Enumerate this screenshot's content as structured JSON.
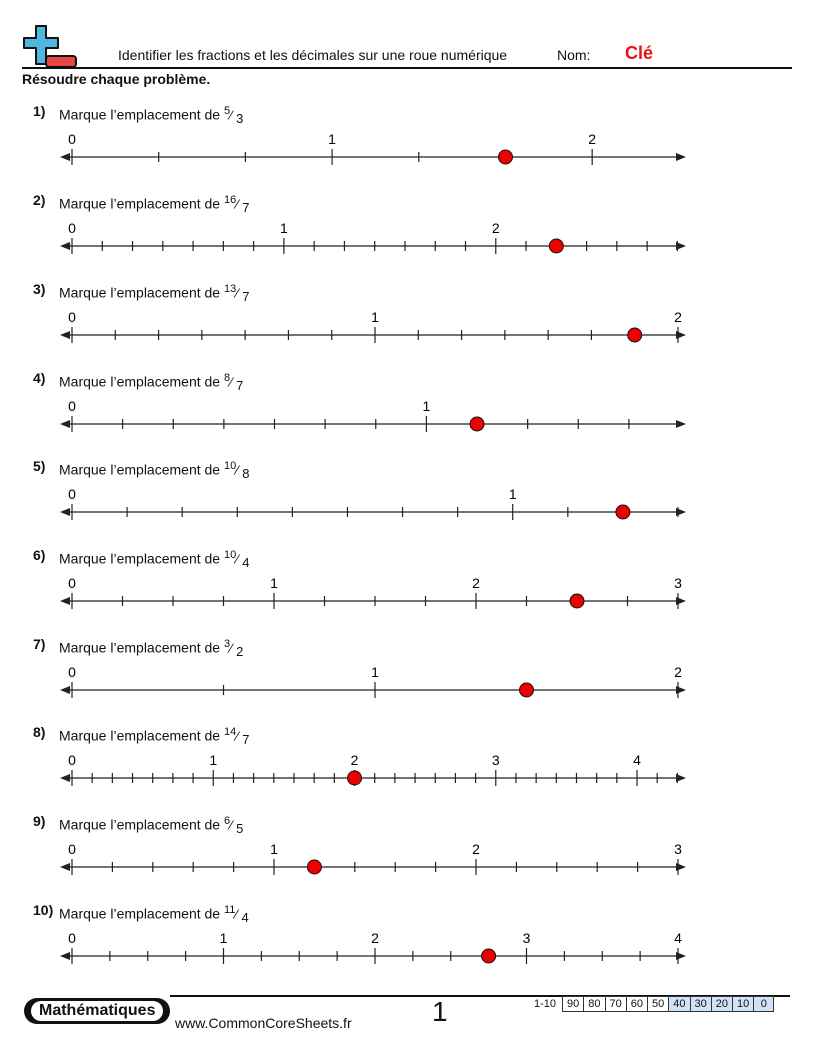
{
  "header": {
    "title": "Identifier les fractions et les décimales sur une roue numérique",
    "name_label": "Nom:",
    "answer_key": "Clé",
    "instructions": "Résoudre chaque problème.",
    "logo": "plus-minus-logo-icon"
  },
  "problems": [
    {
      "num": "1)",
      "prompt": "Marque l’emplacement de",
      "numerator": "5",
      "denominator": "3",
      "max": 2,
      "length_units": 2.33,
      "subdiv": 3,
      "answer": 1.6667,
      "labels": [
        "0",
        "1",
        "2"
      ]
    },
    {
      "num": "2)",
      "prompt": "Marque l’emplacement de",
      "numerator": "16",
      "denominator": "7",
      "max": 2,
      "length_units": 2.86,
      "subdiv": 7,
      "answer": 2.2857,
      "labels": [
        "0",
        "1",
        "2"
      ]
    },
    {
      "num": "3)",
      "prompt": "Marque l’emplacement de",
      "numerator": "13",
      "denominator": "7",
      "max": 2,
      "length_units": 2.0,
      "subdiv": 7,
      "answer": 1.8571,
      "labels": [
        "0",
        "1",
        "2"
      ]
    },
    {
      "num": "4)",
      "prompt": "Marque l’emplacement de",
      "numerator": "8",
      "denominator": "7",
      "max": 1,
      "length_units": 1.71,
      "subdiv": 7,
      "answer": 1.1429,
      "labels": [
        "0",
        "1"
      ]
    },
    {
      "num": "5)",
      "prompt": "Marque l’emplacement de",
      "numerator": "10",
      "denominator": "8",
      "max": 1,
      "length_units": 1.375,
      "subdiv": 8,
      "answer": 1.25,
      "labels": [
        "0",
        "1"
      ]
    },
    {
      "num": "6)",
      "prompt": "Marque l’emplacement de",
      "numerator": "10",
      "denominator": "4",
      "max": 3,
      "length_units": 3.0,
      "subdiv": 4,
      "answer": 2.5,
      "labels": [
        "0",
        "1",
        "2",
        "3"
      ]
    },
    {
      "num": "7)",
      "prompt": "Marque l’emplacement de",
      "numerator": "3",
      "denominator": "2",
      "max": 2,
      "length_units": 2.0,
      "subdiv": 2,
      "answer": 1.5,
      "labels": [
        "0",
        "1",
        "2"
      ]
    },
    {
      "num": "8)",
      "prompt": "Marque l’emplacement de",
      "numerator": "14",
      "denominator": "7",
      "max": 4,
      "length_units": 4.29,
      "subdiv": 7,
      "answer": 2.0,
      "labels": [
        "0",
        "1",
        "2",
        "3",
        "4"
      ]
    },
    {
      "num": "9)",
      "prompt": "Marque l’emplacement de",
      "numerator": "6",
      "denominator": "5",
      "max": 3,
      "length_units": 3.0,
      "subdiv": 5,
      "answer": 1.2,
      "labels": [
        "0",
        "1",
        "2",
        "3"
      ]
    },
    {
      "num": "10)",
      "prompt": "Marque l’emplacement de",
      "numerator": "11",
      "denominator": "4",
      "max": 4,
      "length_units": 4.0,
      "subdiv": 4,
      "answer": 2.75,
      "labels": [
        "0",
        "1",
        "2",
        "3",
        "4"
      ]
    }
  ],
  "footer": {
    "subject": "Mathématiques",
    "website": "www.CommonCoreSheets.fr",
    "page_number": "1",
    "score_label": "1-10",
    "scores": [
      "90",
      "80",
      "70",
      "60",
      "50",
      "40",
      "30",
      "20",
      "10",
      "0"
    ]
  },
  "colors": {
    "answer_dot": "#ee0000",
    "key_text": "#e11111",
    "logo_plus": "#4db8e0",
    "logo_minus": "#e84545",
    "score_highlight": "#cfe2f7"
  }
}
